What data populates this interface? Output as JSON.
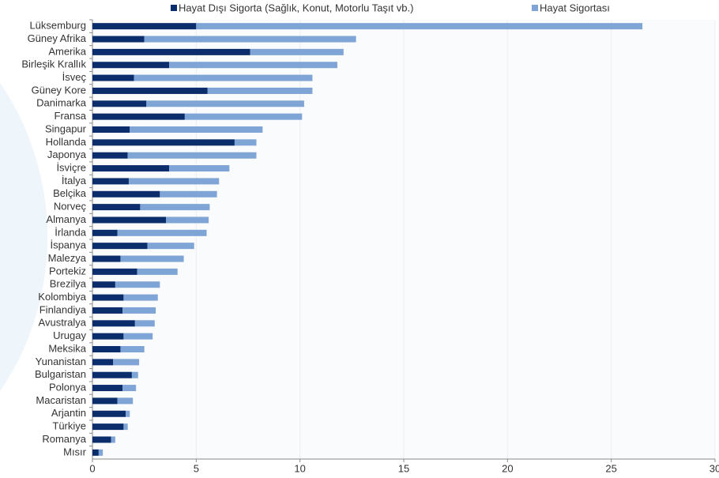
{
  "chart_data": {
    "type": "stacked_barh",
    "categories": [
      "Lüksemburg",
      "Güney Afrika",
      "Amerika",
      "Birleşik Krallık",
      "İsveç",
      "Güney Kore",
      "Danimarka",
      "Fransa",
      "Singapur",
      "Hollanda",
      "Japonya",
      "İsviçre",
      "İtalya",
      "Belçika",
      "Norveç",
      "Almanya",
      "İrlanda",
      "İspanya",
      "Malezya",
      "Portekiz",
      "Brezilya",
      "Kolombiya",
      "Finlandiya",
      "Avustralya",
      "Urugay",
      "Meksika",
      "Yunanistan",
      "Bulgaristan",
      "Polonya",
      "Macaristan",
      "Arjantin",
      "Türkiye",
      "Romanya",
      "Mısır"
    ],
    "series": [
      {
        "name": "Hayat Dışı Sigorta (Sağlık, Konut, Motorlu Taşıt vb.)",
        "color": "#0c2d6b",
        "values": [
          5.0,
          2.5,
          7.6,
          3.7,
          2.0,
          5.55,
          2.6,
          4.45,
          1.8,
          6.85,
          1.7,
          3.7,
          1.75,
          3.25,
          2.3,
          3.55,
          1.2,
          2.65,
          1.35,
          2.15,
          1.1,
          1.5,
          1.45,
          2.05,
          1.5,
          1.35,
          1.0,
          1.9,
          1.45,
          1.2,
          1.6,
          1.5,
          0.9,
          0.3
        ]
      },
      {
        "name": "Hayat Sigortası",
        "color": "#7fa4d6",
        "values": [
          21.5,
          10.2,
          4.5,
          8.1,
          8.6,
          5.05,
          7.6,
          5.65,
          6.4,
          1.05,
          6.2,
          2.9,
          4.35,
          2.75,
          3.35,
          2.05,
          4.3,
          2.25,
          3.05,
          1.95,
          2.15,
          1.65,
          1.6,
          0.95,
          1.4,
          1.15,
          1.25,
          0.3,
          0.65,
          0.75,
          0.2,
          0.2,
          0.2,
          0.2
        ]
      }
    ],
    "xlim": [
      0,
      30
    ],
    "xticks": [
      0,
      5,
      10,
      15,
      20,
      25,
      30
    ],
    "grid": true,
    "legend": "top"
  }
}
